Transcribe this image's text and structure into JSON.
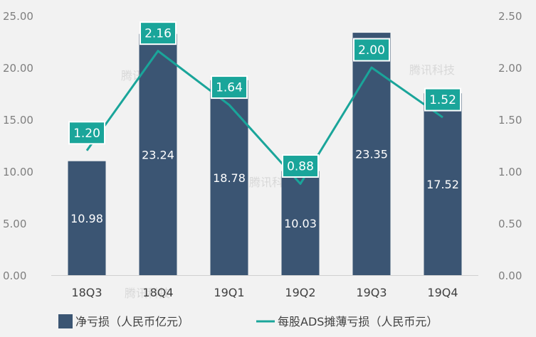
{
  "chart_data": {
    "type": "bar",
    "categories": [
      "18Q3",
      "18Q4",
      "19Q1",
      "19Q2",
      "19Q3",
      "19Q4"
    ],
    "series": [
      {
        "name": "净亏损（人民币亿元）",
        "type": "bar",
        "axis": "left",
        "values": [
          10.98,
          23.24,
          18.78,
          10.03,
          23.35,
          17.52
        ]
      },
      {
        "name": "每股ADS摊薄亏损（人民币元）",
        "type": "line",
        "axis": "right",
        "values": [
          1.2,
          2.16,
          1.64,
          0.88,
          2.0,
          1.52
        ]
      }
    ],
    "bar_labels": [
      "10.98",
      "23.24",
      "18.78",
      "10.03",
      "23.35",
      "17.52"
    ],
    "line_labels": [
      "1.20",
      "2.16",
      "1.64",
      "0.88",
      "2.00",
      "1.52"
    ],
    "y_left": {
      "ylim": [
        0,
        25
      ],
      "ticks": [
        "0.00",
        "5.00",
        "10.00",
        "15.00",
        "20.00",
        "25.00"
      ]
    },
    "y_right": {
      "ylim": [
        0,
        2.5
      ],
      "ticks": [
        "0.00",
        "0.50",
        "1.00",
        "1.50",
        "2.00",
        "2.50"
      ]
    },
    "grid": false,
    "legend_position": "bottom",
    "colors": {
      "bar": "#3b5573",
      "line": "#1aa59a",
      "label_box": "#1aa59a",
      "background": "#f2f2f2"
    }
  },
  "watermark": "腾讯科技"
}
